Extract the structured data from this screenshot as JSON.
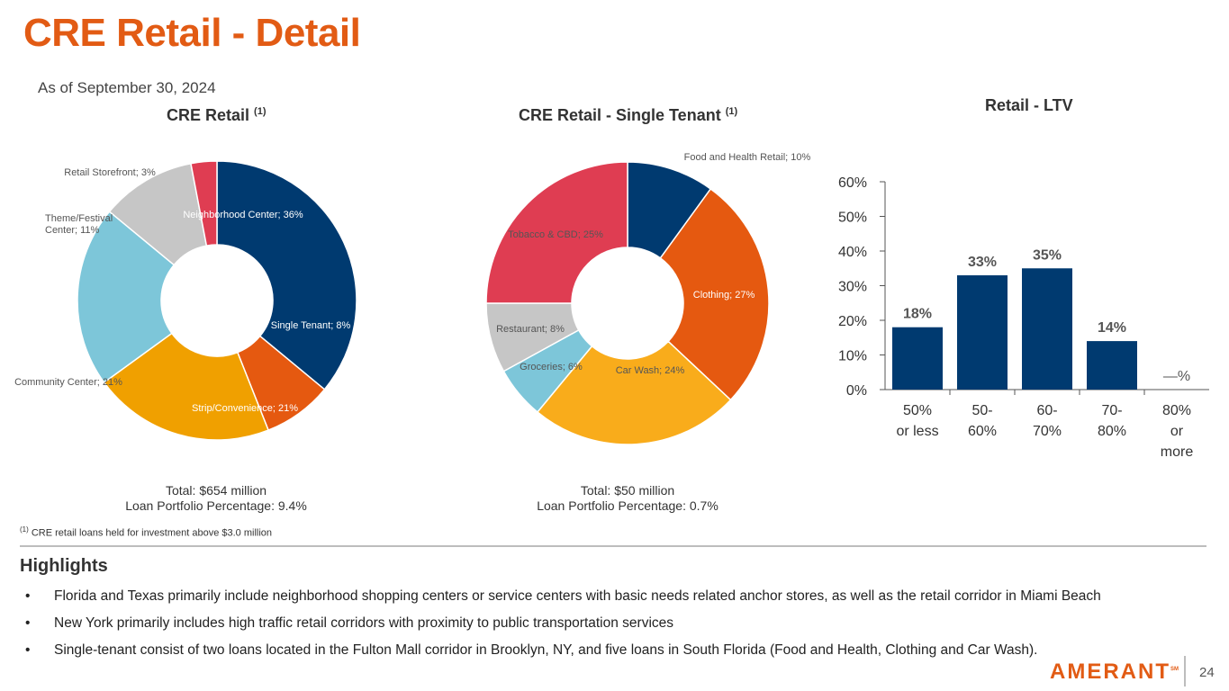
{
  "title": "CRE Retail - Detail",
  "as_of_label": "As of",
  "as_of_date": "September 30, 2024",
  "donut1": {
    "title": "CRE Retail",
    "title_sup": "(1)",
    "total_line": "Total: $654 million",
    "pct_line": "Loan Portfolio Percentage: 9.4%"
  },
  "donut2": {
    "title": "CRE Retail - Single Tenant",
    "title_sup": "(1)",
    "total_line": "Total:  $50 million",
    "pct_line": "Loan Portfolio Percentage: 0.7%"
  },
  "bar1": {
    "title": "Retail - LTV"
  },
  "footnote": {
    "sup": "(1)",
    "text": "CRE retail loans held for investment  above $3.0 million"
  },
  "highlights": {
    "title": "Highlights",
    "bullet": "•",
    "items": [
      "Florida and Texas primarily include neighborhood shopping centers or service centers with basic needs related anchor stores, as well as the retail corridor in Miami Beach",
      "New York primarily includes high traffic retail corridors with proximity to public transportation services",
      "Single-tenant consist of two loans located in the Fulton Mall corridor in Brooklyn, NY, and five loans in  South Florida (Food and Health, Clothing and Car Wash)."
    ]
  },
  "logo": {
    "text": "AMERANT",
    "mark": "SM"
  },
  "page_number": "24",
  "chart_data": [
    {
      "type": "pie",
      "title": "CRE Retail",
      "slices": [
        {
          "label": "Neighborhood Center; 36%",
          "value": 36,
          "color": "#003a70",
          "label_color": "#ffffff"
        },
        {
          "label": "Single Tenant; 8%",
          "value": 8,
          "color": "#e55910",
          "label_color": "#ffffff"
        },
        {
          "label": "Strip/Convenience; 21%",
          "value": 21,
          "color": "#f0a000",
          "label_color": "#ffffff"
        },
        {
          "label": "Community Center; 21%",
          "value": 21,
          "color": "#7dc6d9",
          "label_color": "#555555"
        },
        {
          "label": "Theme/Festival Center; 11%",
          "label_lines": [
            "Theme/Festival",
            "Center; 11%"
          ],
          "value": 11,
          "color": "#c6c6c6",
          "label_color": "#555555"
        },
        {
          "label": "Retail Storefront; 3%",
          "value": 3,
          "color": "#df3d52",
          "label_color": "#555555"
        }
      ]
    },
    {
      "type": "pie",
      "title": "CRE Retail - Single Tenant",
      "slices": [
        {
          "label": "Food and Health Retail; 10%",
          "value": 10,
          "color": "#003a70",
          "label_color": "#555555"
        },
        {
          "label": "Clothing; 27%",
          "value": 27,
          "color": "#e55910",
          "label_color": "#ffffff"
        },
        {
          "label": "Car Wash; 24%",
          "value": 24,
          "color": "#f9ac1b",
          "label_color": "#555555"
        },
        {
          "label": "Groceries; 6%",
          "value": 6,
          "color": "#7dc6d9",
          "label_color": "#555555"
        },
        {
          "label": "Restaurant; 8%",
          "value": 8,
          "color": "#c6c6c6",
          "label_color": "#555555"
        },
        {
          "label": "Tobacco & CBD; 25%",
          "value": 25,
          "color": "#df3d52",
          "label_color": "#555555"
        }
      ]
    },
    {
      "type": "bar",
      "title": "Retail - LTV",
      "categories": [
        "50% or less",
        "50-60%",
        "60-70%",
        "70-80%",
        "80% or more"
      ],
      "category_lines": [
        [
          "50%",
          "or less"
        ],
        [
          "50-",
          "60%"
        ],
        [
          "60-",
          "70%"
        ],
        [
          "70-",
          "80%"
        ],
        [
          "80%",
          "or",
          "more"
        ]
      ],
      "values": [
        18,
        33,
        35,
        14,
        0
      ],
      "value_labels": [
        "18%",
        "33%",
        "35%",
        "14%",
        "—%"
      ],
      "ylim": [
        0,
        60
      ],
      "yticks": [
        "0%",
        "10%",
        "20%",
        "30%",
        "40%",
        "50%",
        "60%"
      ],
      "bar_color": "#003a70",
      "xlabel": "",
      "ylabel": ""
    }
  ]
}
